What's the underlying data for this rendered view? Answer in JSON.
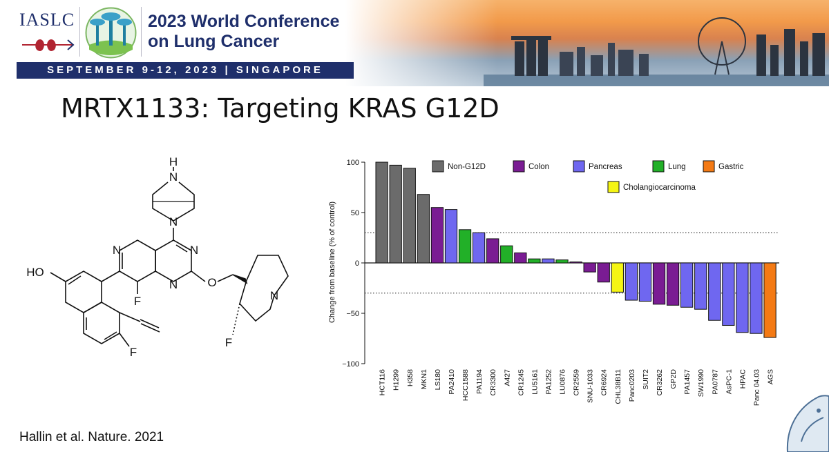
{
  "banner": {
    "org_name": "IASLC",
    "conference_title_line1": "2023 World Conference",
    "conference_title_line2": "on Lung Cancer",
    "date_location": "SEPTEMBER 9-12, 2023 | SINGAPORE"
  },
  "slide": {
    "title": "MRTX1133: Targeting KRAS G12D",
    "citation": "Hallin et al. Nature. 2021"
  },
  "molecule": {
    "labels": {
      "h_top": "H",
      "n_bridge": "N",
      "n_pyr_left": "N",
      "n_pyr_right": "N",
      "n_pyr_bottom": "N",
      "ho": "HO",
      "f_ring": "F",
      "f_naph": "F",
      "o_ether": "O",
      "n_pyrrolizine": "N",
      "f_pyrrolizine": "F"
    }
  },
  "colors": {
    "non_g12d": "#6b6b6b",
    "colon": "#7a1c93",
    "pancreas": "#6f67f0",
    "lung": "#22b028",
    "gastric": "#f47a14",
    "cholangiocarcinoma": "#f5f514",
    "navy": "#1f2f6b"
  },
  "chart_data": {
    "type": "bar",
    "ylabel": "Change from baseline (% of control)",
    "ylim": [
      -100,
      100
    ],
    "yticks": [
      "100",
      "50",
      "0",
      "−50",
      "−100"
    ],
    "reference_lines": [
      30,
      -30
    ],
    "legend": [
      {
        "name": "Non-G12D",
        "color": "#6b6b6b"
      },
      {
        "name": "Colon",
        "color": "#7a1c93"
      },
      {
        "name": "Pancreas",
        "color": "#6f67f0"
      },
      {
        "name": "Lung",
        "color": "#22b028"
      },
      {
        "name": "Gastric",
        "color": "#f47a14"
      },
      {
        "name": "Cholangiocarcinoma",
        "color": "#f5f514"
      }
    ],
    "categories": [
      "HCT116",
      "H1299",
      "H358",
      "MKN1",
      "LS180",
      "PA2410",
      "HCC1588",
      "PA1194",
      "CR3300",
      "A427",
      "CR1245",
      "LU5161",
      "PA1252",
      "LU0876",
      "CR2559",
      "SNU-1033",
      "CR6924",
      "CHL38B11",
      "Panc0203",
      "SUIT2",
      "CR3262",
      "GP2D",
      "PA1457",
      "SW1990",
      "PA0787",
      "AsPC-1",
      "HPAC",
      "Panc 04.03",
      "AGS"
    ],
    "values": [
      100,
      97,
      94,
      68,
      55,
      53,
      33,
      30,
      24,
      17,
      10,
      4,
      4,
      3,
      1,
      -9,
      -19,
      -29,
      -37,
      -38,
      -41,
      -42,
      -44,
      -46,
      -57,
      -62,
      -69,
      -70,
      -74
    ],
    "groups": [
      "Non-G12D",
      "Non-G12D",
      "Non-G12D",
      "Non-G12D",
      "Colon",
      "Pancreas",
      "Lung",
      "Pancreas",
      "Colon",
      "Lung",
      "Colon",
      "Lung",
      "Pancreas",
      "Lung",
      "Colon",
      "Colon",
      "Colon",
      "Cholangiocarcinoma",
      "Pancreas",
      "Pancreas",
      "Colon",
      "Colon",
      "Pancreas",
      "Pancreas",
      "Pancreas",
      "Pancreas",
      "Pancreas",
      "Pancreas",
      "Gastric"
    ]
  }
}
